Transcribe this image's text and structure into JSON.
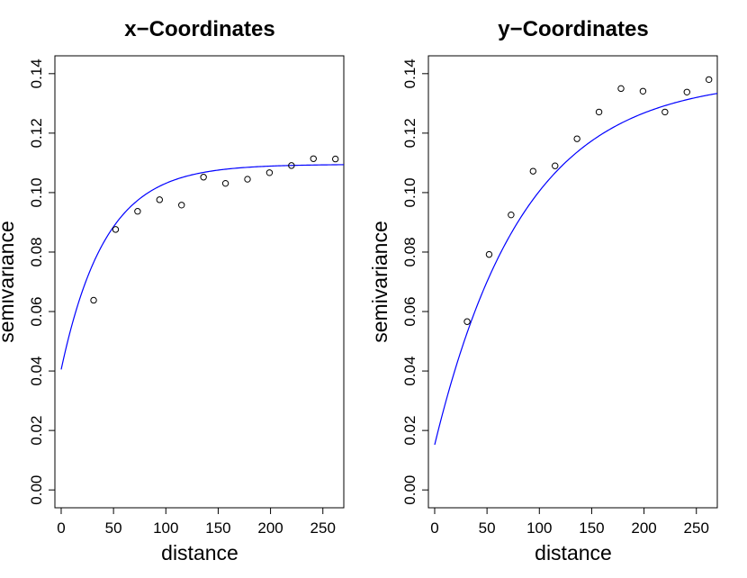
{
  "chart_data": [
    {
      "type": "scatter",
      "title": "x−Coordinates",
      "xlabel": "distance",
      "ylabel": "semivariance",
      "xlim": [
        -6,
        270
      ],
      "ylim": [
        -0.006,
        0.146
      ],
      "xticks": [
        0,
        50,
        100,
        150,
        200,
        250
      ],
      "yticks": [
        0.0,
        0.02,
        0.04,
        0.06,
        0.08,
        0.1,
        0.12,
        0.14
      ],
      "x_tick_labels": [
        "0",
        "50",
        "100",
        "150",
        "200",
        "250"
      ],
      "y_tick_labels": [
        "0.00",
        "0.02",
        "0.04",
        "0.06",
        "0.08",
        "0.10",
        "0.12",
        "0.14"
      ],
      "points": {
        "x": [
          31,
          52,
          73,
          94,
          115,
          136,
          157,
          178,
          199,
          220,
          241,
          262
        ],
        "y": [
          0.0638,
          0.0876,
          0.0937,
          0.0976,
          0.0958,
          0.1052,
          0.1031,
          0.1045,
          0.1067,
          0.1091,
          0.1114,
          0.1113
        ]
      },
      "fit_curve": {
        "color": "#0000ff",
        "nugget": 0.0405,
        "sill": 0.1095,
        "range": 42,
        "x_from": 0,
        "x_to": 270
      },
      "grid": false
    },
    {
      "type": "scatter",
      "title": "y−Coordinates",
      "xlabel": "distance",
      "ylabel": "semivariance",
      "xlim": [
        -6,
        270
      ],
      "ylim": [
        -0.006,
        0.146
      ],
      "xticks": [
        0,
        50,
        100,
        150,
        200,
        250
      ],
      "yticks": [
        0.0,
        0.02,
        0.04,
        0.06,
        0.08,
        0.1,
        0.12,
        0.14
      ],
      "x_tick_labels": [
        "0",
        "50",
        "100",
        "150",
        "200",
        "250"
      ],
      "y_tick_labels": [
        "0.00",
        "0.02",
        "0.04",
        "0.06",
        "0.08",
        "0.10",
        "0.12",
        "0.14"
      ],
      "points": {
        "x": [
          31,
          52,
          73,
          94,
          115,
          136,
          157,
          178,
          199,
          220,
          241,
          262
        ],
        "y": [
          0.0566,
          0.0792,
          0.0925,
          0.1072,
          0.109,
          0.1181,
          0.1271,
          0.135,
          0.1341,
          0.1271,
          0.1338,
          0.138
        ]
      },
      "fit_curve": {
        "color": "#0000ff",
        "nugget": 0.0152,
        "sill": 0.1385,
        "range": 85,
        "x_from": 0,
        "x_to": 270
      },
      "grid": false
    }
  ]
}
